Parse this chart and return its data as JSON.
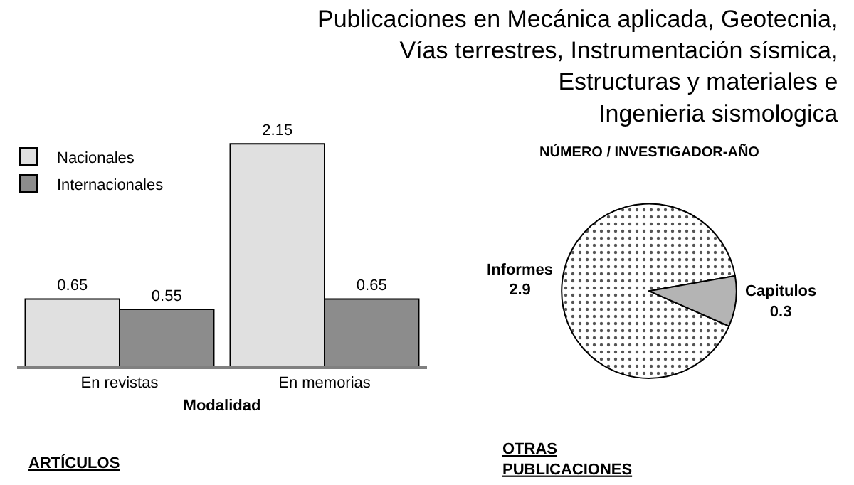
{
  "chart_data": [
    {
      "type": "bar",
      "title": "Publicaciones en Mecánica aplicada, Geotecnia,\nVías terrestres, Instrumentación sísmica,\nEstructuras y materiales e\nIngenieria sismologica",
      "xlabel": "Modalidad",
      "categories": [
        "En revistas",
        "En memorias"
      ],
      "series": [
        {
          "name": "Nacionales",
          "color": "#e0e0e0",
          "values": [
            0.65,
            2.15
          ]
        },
        {
          "name": "Internacionales",
          "color": "#8c8c8c",
          "values": [
            0.55,
            0.65
          ]
        }
      ],
      "data_labels": true,
      "legend": "top left",
      "annotations": [
        "ARTÍCULOS"
      ]
    },
    {
      "type": "pie",
      "title": "NÚMERO / INVESTIGADOR-AÑO",
      "categories": [
        "Informes",
        "Capitulos"
      ],
      "values": [
        2.9,
        0.3
      ],
      "colors": [
        "#f4f4f4",
        "#b4b4b4"
      ],
      "data_labels": true,
      "annotations": [
        "OTRAS\nPUBLICACIONES"
      ]
    }
  ]
}
